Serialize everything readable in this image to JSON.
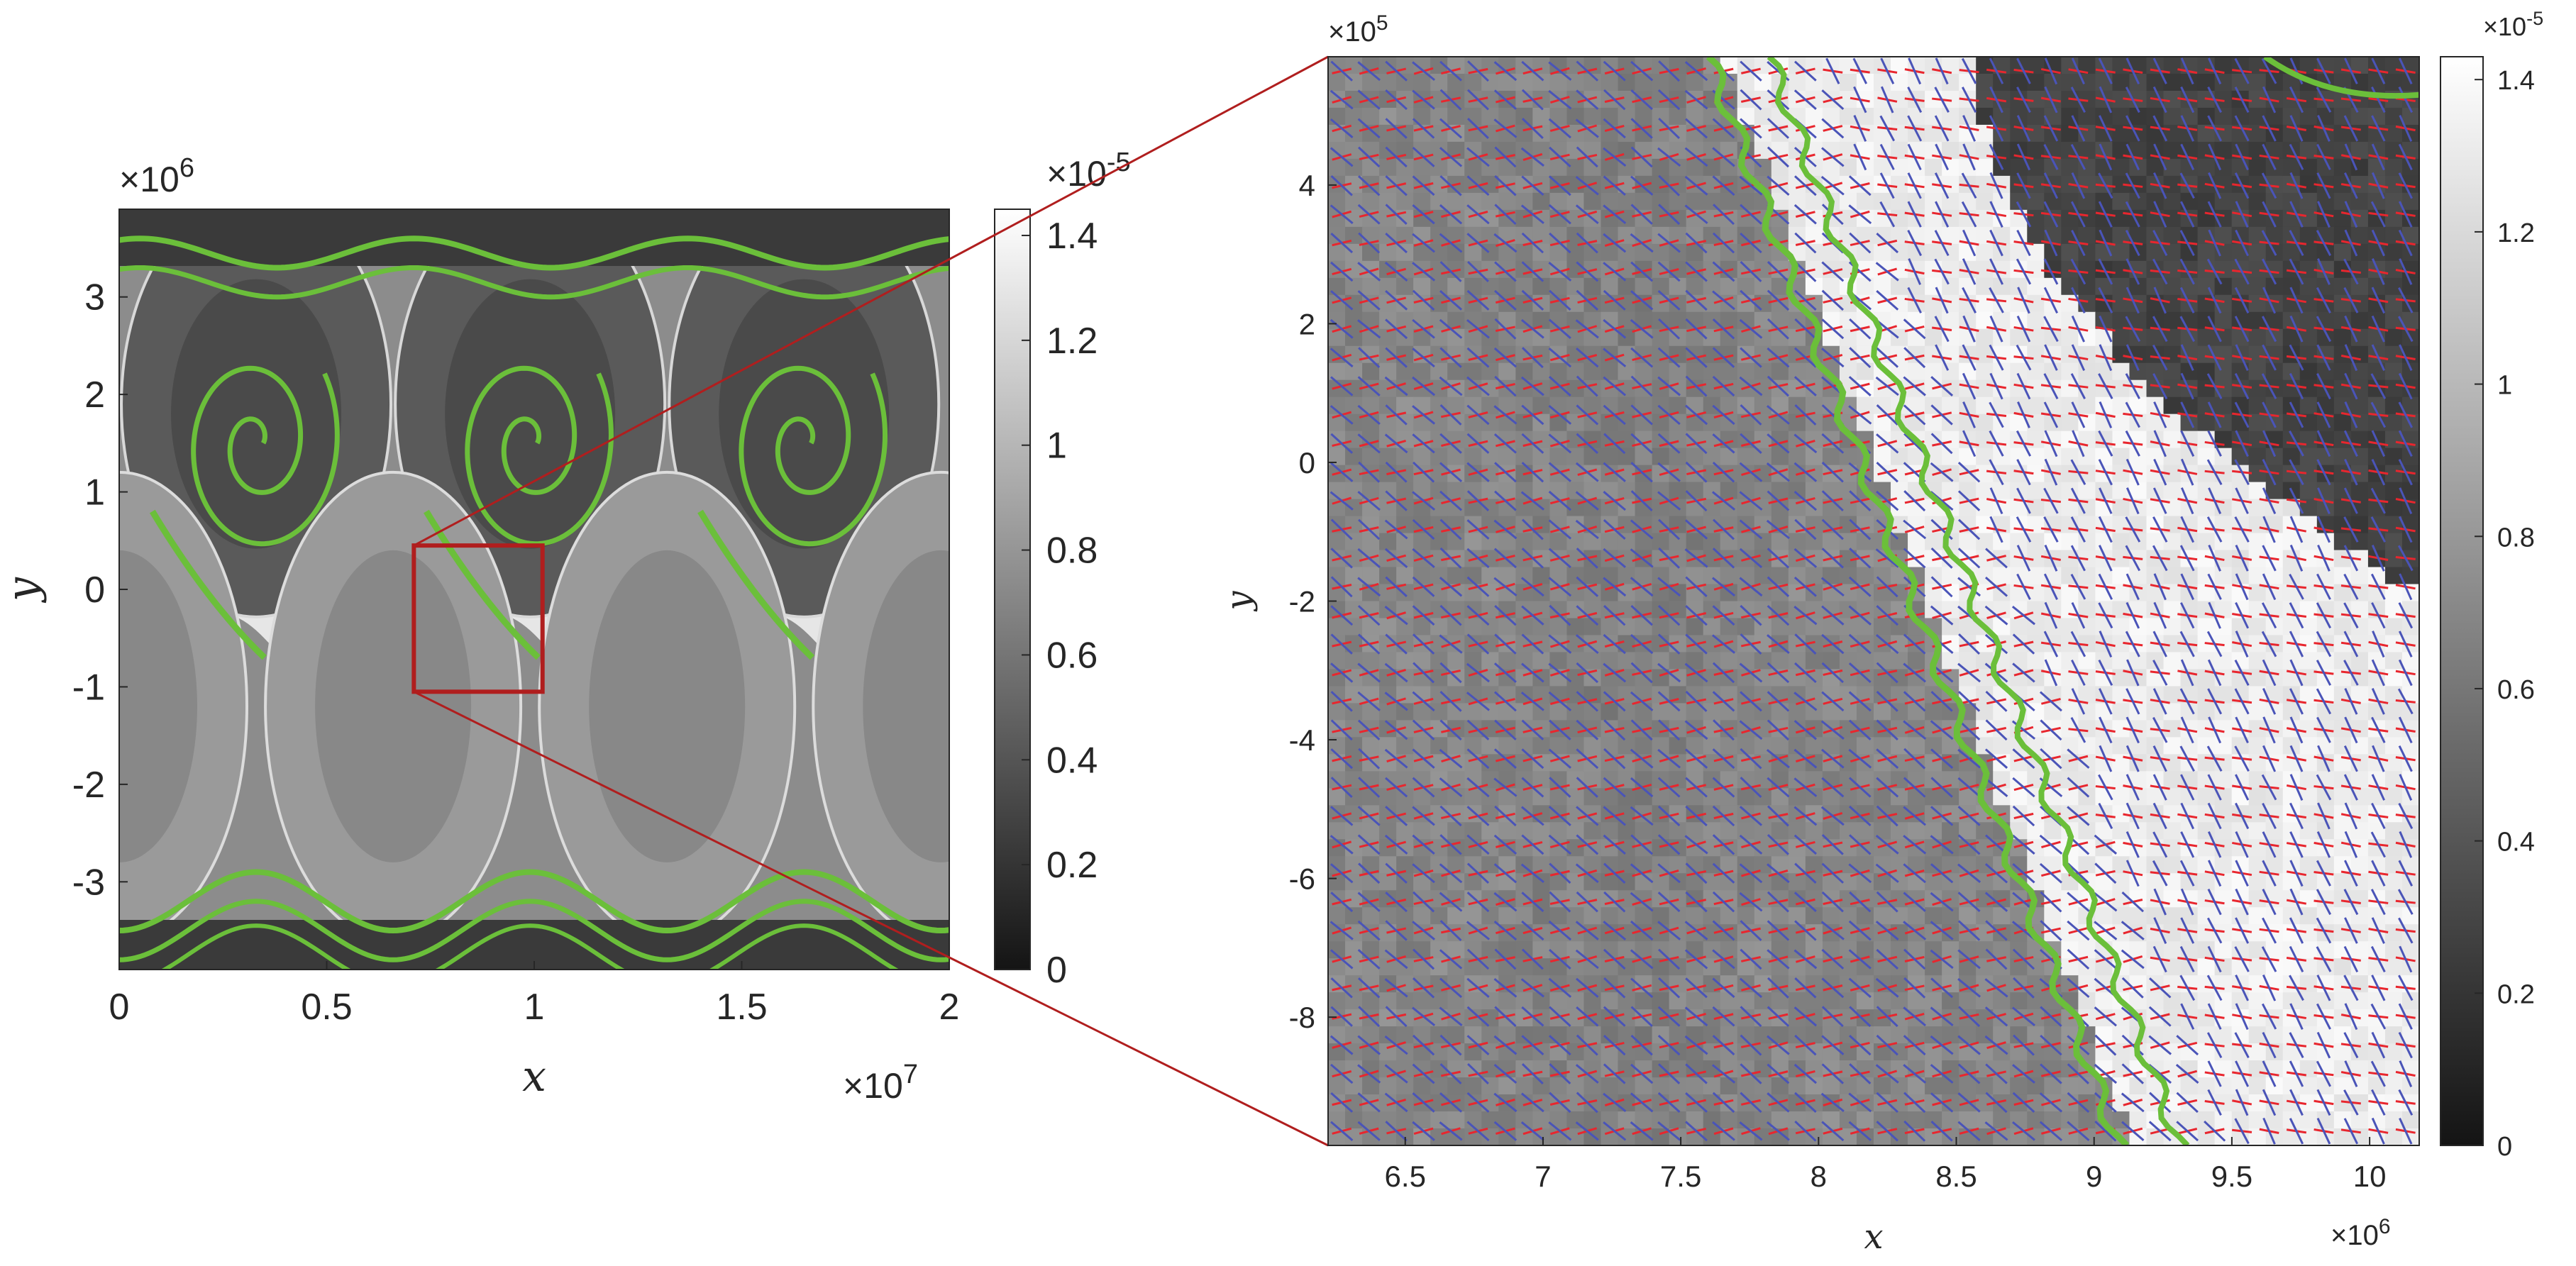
{
  "chart_data": [
    {
      "type": "heatmap",
      "panel": "overview",
      "xlabel": "x",
      "ylabel": "y",
      "x_exponent": "×10^7",
      "y_exponent": "×10^6",
      "xlim": [
        0,
        2
      ],
      "ylim": [
        -3.9,
        3.9
      ],
      "xticks": [
        0,
        0.5,
        1,
        1.5,
        2
      ],
      "xtick_labels": [
        "0",
        "0.5",
        "1",
        "1.5",
        "2"
      ],
      "yticks": [
        3,
        2,
        1,
        0,
        -1,
        -2,
        -3
      ],
      "ytick_labels": [
        "3",
        "2",
        "1",
        "0",
        "-1",
        "-2",
        "-3"
      ],
      "colormap": "gray",
      "colorbar": {
        "exponent": "×10^-5",
        "range": [
          0,
          1.45
        ],
        "ticks": [
          0,
          0.2,
          0.4,
          0.6,
          0.8,
          1,
          1.2,
          1.4
        ],
        "tick_labels": [
          "0",
          "0.2",
          "0.4",
          "0.6",
          "0.8",
          "1",
          "1.2",
          "1.4"
        ]
      },
      "contour_color": "#6bbf3a",
      "zoom_box": {
        "x": [
          0.71,
          1.02
        ],
        "y": [
          -1.05,
          0.45
        ],
        "color": "#b01e1e"
      },
      "grid": false
    },
    {
      "type": "heatmap",
      "panel": "zoom",
      "xlabel": "x",
      "ylabel": "y",
      "x_exponent": "×10^6",
      "y_exponent": "×10^5",
      "xlim": [
        6.22,
        10.18
      ],
      "ylim": [
        -9.85,
        5.85
      ],
      "xticks": [
        6.5,
        7,
        7.5,
        8,
        8.5,
        9,
        9.5,
        10
      ],
      "xtick_labels": [
        "6.5",
        "7",
        "7.5",
        "8",
        "8.5",
        "9",
        "9.5",
        "10"
      ],
      "yticks": [
        4,
        2,
        0,
        -2,
        -4,
        -6,
        -8
      ],
      "ytick_labels": [
        "4",
        "2",
        "0",
        "-2",
        "-4",
        "-6",
        "-8"
      ],
      "colormap": "gray",
      "colorbar": {
        "exponent": "×10^-5",
        "range": [
          0,
          1.43
        ],
        "ticks": [
          0,
          0.2,
          0.4,
          0.6,
          0.8,
          1,
          1.2,
          1.4
        ],
        "tick_labels": [
          "0",
          "0.2",
          "0.4",
          "0.6",
          "0.8",
          "1",
          "1.2",
          "1.4"
        ]
      },
      "overlay": "director field glyphs (red and blue line segments)",
      "glyph_colors": [
        "#e8262e",
        "#4a54b8"
      ],
      "contour_color": "#6bbf3a",
      "grid": false
    }
  ]
}
